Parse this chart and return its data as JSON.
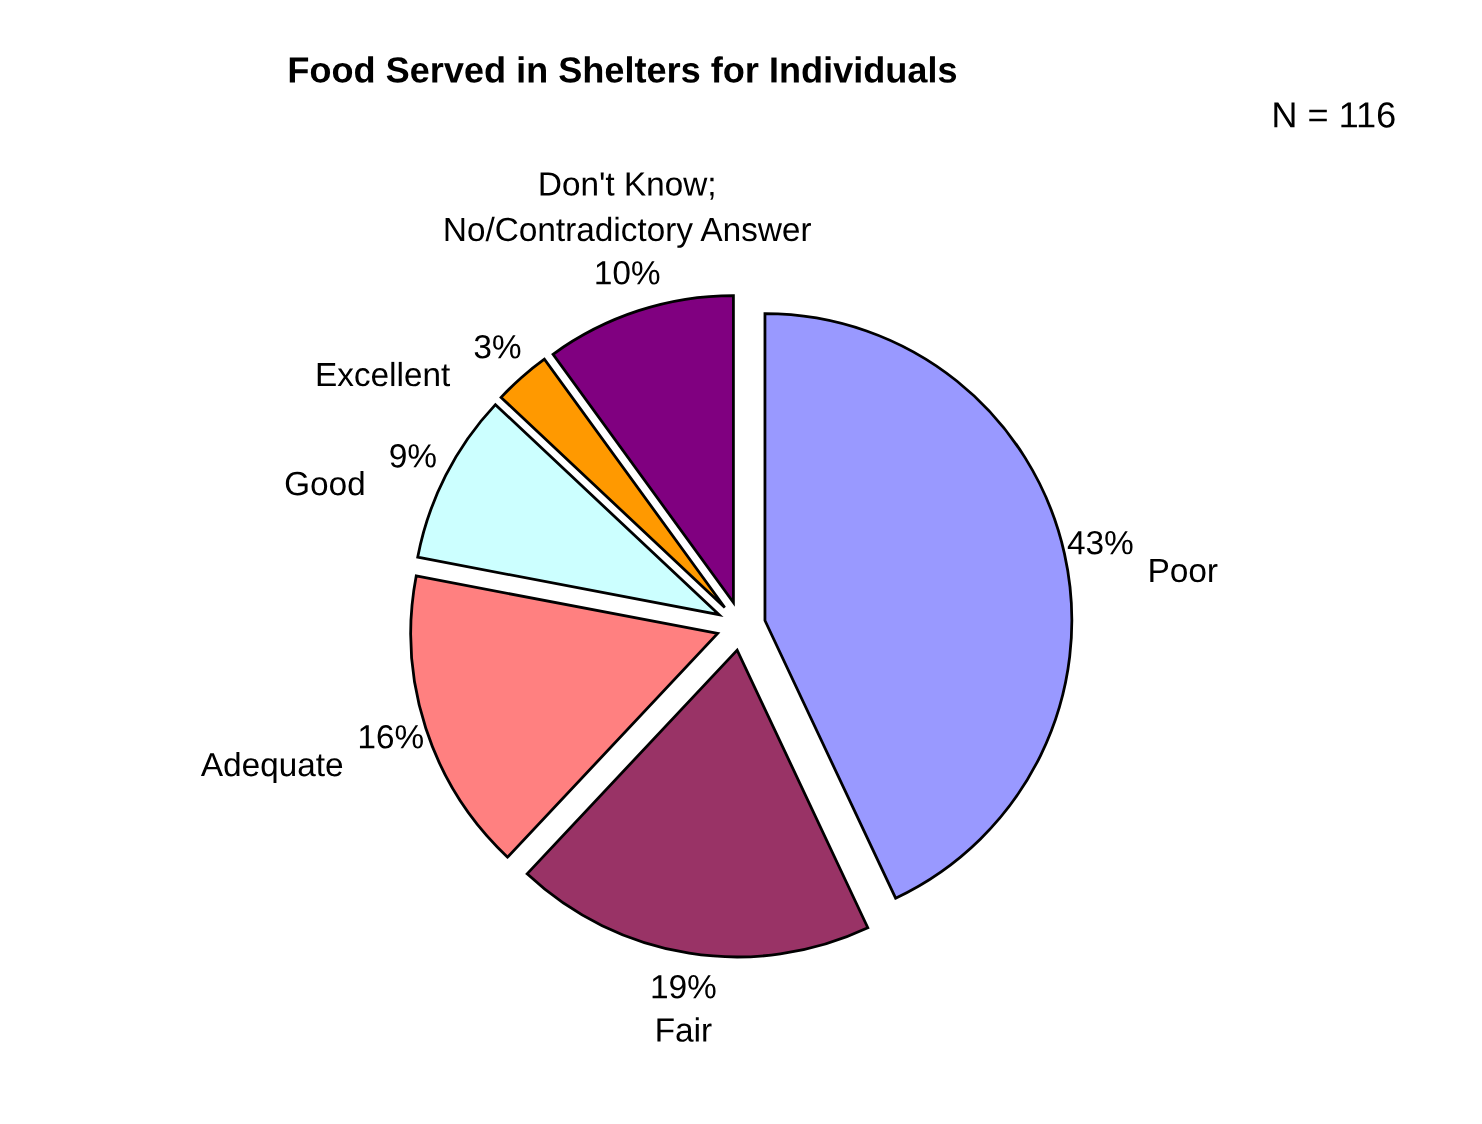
{
  "chart_data": {
    "type": "pie",
    "title": "Food Served in Shelters for Individuals",
    "categories": [
      "Poor",
      "Fair",
      "Adequate",
      "Good",
      "Excellent",
      "Don't Know;\nNo/Contradictory Answer"
    ],
    "values": [
      43,
      19,
      16,
      9,
      3,
      10
    ],
    "value_labels": [
      "43%",
      "19%",
      "16%",
      "9%",
      "3%",
      "10%"
    ],
    "colors": [
      "#9999ff",
      "#993366",
      "#ff8080",
      "#ccffff",
      "#ff9900",
      "#800080"
    ],
    "annotations": [
      "N = 116"
    ],
    "legend": false
  }
}
